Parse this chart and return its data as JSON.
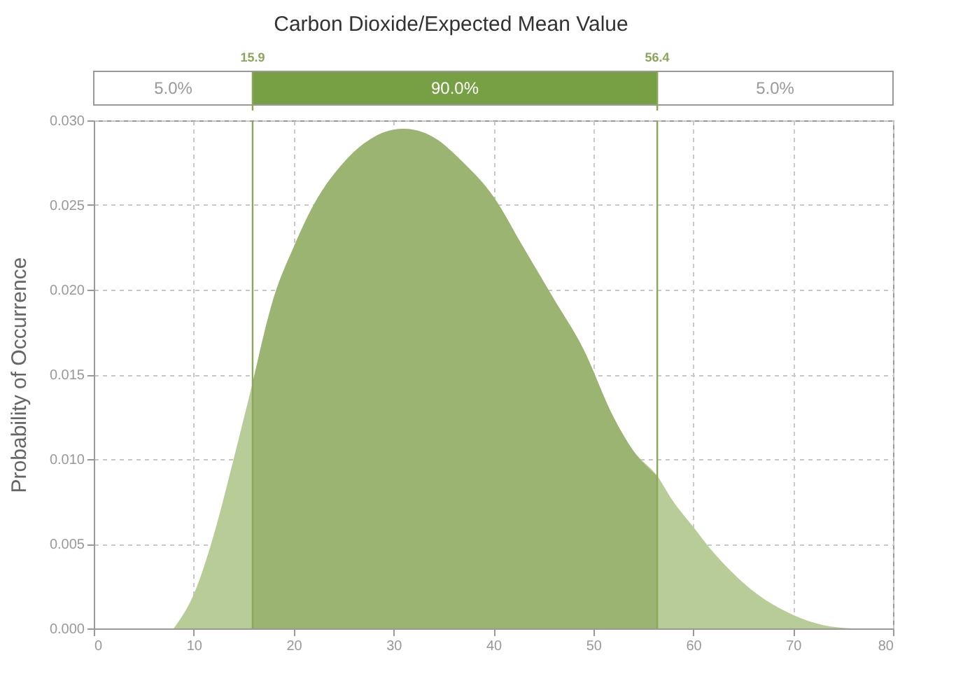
{
  "chart_data": {
    "type": "area",
    "title": "Carbon Dioxide/Expected Mean Value",
    "ylabel": "Probability of Occurrence",
    "xlim": [
      0,
      80
    ],
    "xticks": [
      0,
      10,
      20,
      30,
      40,
      50,
      60,
      70,
      80
    ],
    "ylim": [
      0,
      0.03
    ],
    "yticks": [
      {
        "value": 0,
        "label": "0.000"
      },
      {
        "value": 0.005,
        "label": "0.005"
      },
      {
        "value": 0.01,
        "label": "0.010"
      },
      {
        "value": 0.015,
        "label": "0.015"
      },
      {
        "value": 0.02,
        "label": "0.020"
      },
      {
        "value": 0.025,
        "label": "0.025"
      },
      {
        "value": 0.03,
        "label": "0.030"
      }
    ],
    "grid": true,
    "series": [
      {
        "color": "#b8cc98",
        "x": [
          8,
          10,
          12,
          14,
          15.9,
          18,
          20,
          22,
          25,
          28,
          31,
          34,
          37,
          40,
          43,
          46,
          49,
          52,
          54,
          56.4,
          58,
          60,
          62,
          65,
          68,
          70,
          73,
          76
        ],
        "values": [
          0,
          0.002,
          0.0055,
          0.01,
          0.0145,
          0.0195,
          0.0225,
          0.025,
          0.0275,
          0.029,
          0.0295,
          0.029,
          0.0275,
          0.0255,
          0.0225,
          0.0195,
          0.0165,
          0.0125,
          0.0105,
          0.009,
          0.0075,
          0.006,
          0.0045,
          0.0027,
          0.0014,
          0.0008,
          0.0002,
          0
        ]
      },
      {
        "color": "#9bb472",
        "x": [
          15.9,
          18,
          20,
          22,
          25,
          28,
          31,
          34,
          37,
          40,
          43,
          46,
          49,
          52,
          54,
          56.4
        ],
        "values": [
          0.0145,
          0.0195,
          0.0225,
          0.025,
          0.0275,
          0.029,
          0.0295,
          0.029,
          0.0275,
          0.0255,
          0.0225,
          0.0195,
          0.0165,
          0.0125,
          0.0105,
          0.009
        ]
      }
    ],
    "ref_lines": [
      {
        "axis": "x",
        "value": 15.9,
        "label": "15.9",
        "color": "#8aa65a"
      },
      {
        "axis": "x",
        "value": 56.4,
        "label": "56.4",
        "color": "#8aa65a"
      }
    ],
    "annotations": [
      "5.0%",
      "90.0%",
      "5.0%"
    ]
  }
}
